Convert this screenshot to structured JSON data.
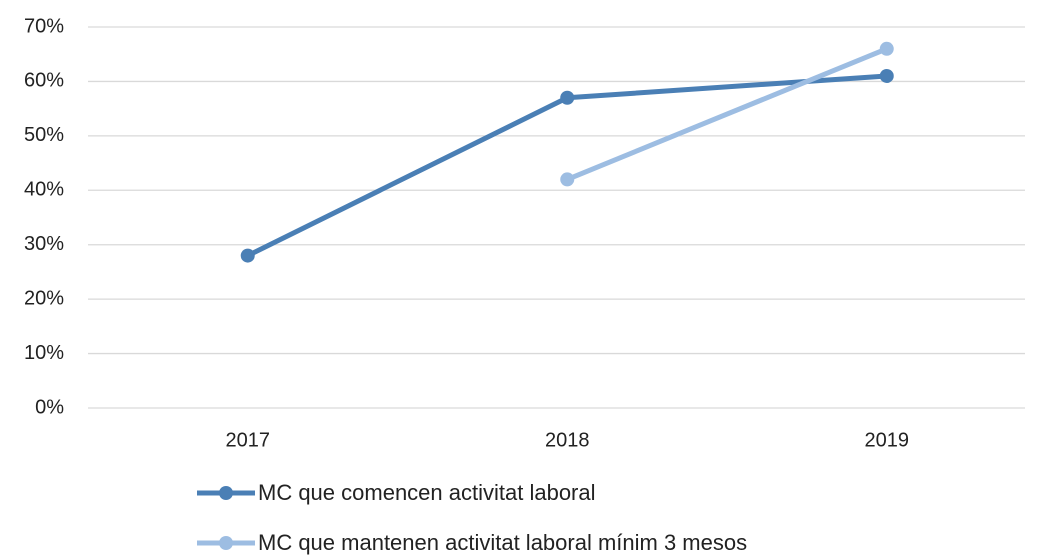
{
  "chart_data": {
    "type": "line",
    "categories": [
      "2017",
      "2018",
      "2019"
    ],
    "series": [
      {
        "name": "MC que comencen activitat laboral",
        "color": "#4a7fb5",
        "values": [
          28,
          57,
          61
        ]
      },
      {
        "name": "MC que mantenen activitat laboral mínim 3 mesos",
        "color": "#9dbde2",
        "values": [
          null,
          42,
          66
        ]
      }
    ],
    "ylim": [
      0,
      70
    ],
    "yticks": [
      {
        "value": 0,
        "label": "0%"
      },
      {
        "value": 10,
        "label": "10%"
      },
      {
        "value": 20,
        "label": "20%"
      },
      {
        "value": 30,
        "label": "30%"
      },
      {
        "value": 40,
        "label": "40%"
      },
      {
        "value": 50,
        "label": "50%"
      },
      {
        "value": 60,
        "label": "60%"
      },
      {
        "value": 70,
        "label": "70%"
      }
    ],
    "grid": true,
    "legend": "bottom"
  }
}
